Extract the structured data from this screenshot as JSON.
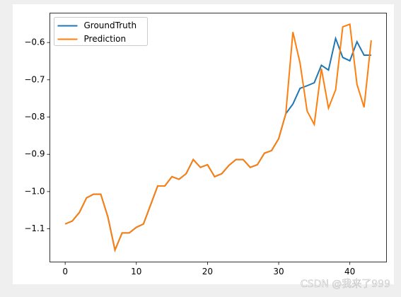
{
  "chart_data": {
    "type": "line",
    "x": [
      0,
      1,
      2,
      3,
      4,
      5,
      6,
      7,
      8,
      9,
      10,
      11,
      12,
      13,
      14,
      15,
      16,
      17,
      18,
      19,
      20,
      21,
      22,
      23,
      24,
      25,
      26,
      27,
      28,
      29,
      30,
      31,
      32,
      33,
      34,
      35,
      36,
      37,
      38,
      39,
      40,
      41,
      42,
      43
    ],
    "series": [
      {
        "name": "GroundTruth",
        "color": "#1f77b4",
        "values": [
          -1.087,
          -1.079,
          -1.056,
          -1.017,
          -1.007,
          -1.007,
          -1.068,
          -1.157,
          -1.111,
          -1.111,
          -1.096,
          -1.087,
          -1.036,
          -0.985,
          -0.985,
          -0.96,
          -0.967,
          -0.952,
          -0.914,
          -0.935,
          -0.928,
          -0.96,
          -0.952,
          -0.93,
          -0.914,
          -0.914,
          -0.935,
          -0.928,
          -0.897,
          -0.89,
          -0.858,
          -0.791,
          -0.765,
          -0.723,
          -0.716,
          -0.708,
          -0.661,
          -0.674,
          -0.589,
          -0.64,
          -0.649,
          -0.598,
          -0.634,
          -0.634
        ]
      },
      {
        "name": "Prediction",
        "color": "#ff7f0e",
        "values": [
          -1.087,
          -1.079,
          -1.056,
          -1.017,
          -1.007,
          -1.007,
          -1.068,
          -1.157,
          -1.111,
          -1.111,
          -1.096,
          -1.087,
          -1.036,
          -0.985,
          -0.985,
          -0.96,
          -0.967,
          -0.952,
          -0.914,
          -0.935,
          -0.928,
          -0.96,
          -0.952,
          -0.93,
          -0.914,
          -0.914,
          -0.935,
          -0.928,
          -0.897,
          -0.89,
          -0.858,
          -0.791,
          -0.572,
          -0.655,
          -0.784,
          -0.82,
          -0.67,
          -0.776,
          -0.727,
          -0.558,
          -0.551,
          -0.712,
          -0.774,
          -0.594
        ]
      }
    ],
    "xlim": [
      -2.15,
      45.15
    ],
    "xticks": [
      0,
      10,
      20,
      30,
      40
    ],
    "ylim": [
      -1.189,
      -0.521
    ],
    "yticks": [
      {
        "value": -1.1,
        "label": "−1.1"
      },
      {
        "value": -1.0,
        "label": "−1.0"
      },
      {
        "value": -0.9,
        "label": "−0.9"
      },
      {
        "value": -0.8,
        "label": "−0.8"
      },
      {
        "value": -0.7,
        "label": "−0.7"
      },
      {
        "value": -0.6,
        "label": "−0.6"
      }
    ],
    "grid": false,
    "legend": "upper left"
  },
  "watermark": "CSDN @我来了999"
}
